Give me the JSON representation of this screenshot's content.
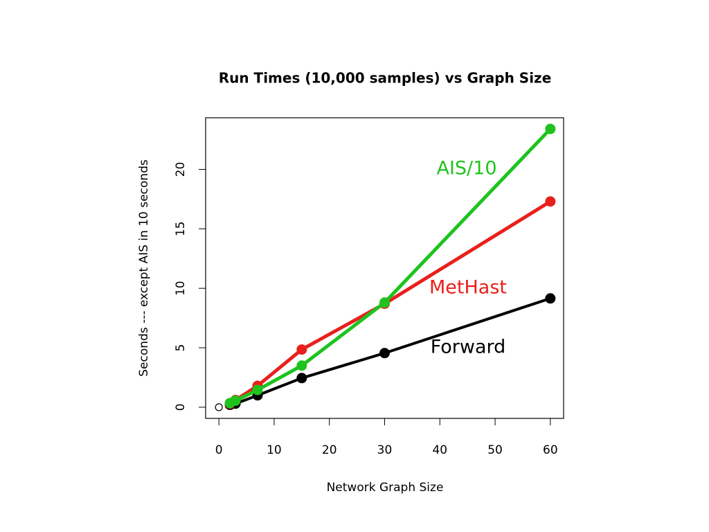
{
  "chart_data": {
    "type": "line",
    "title": "Run Times (10,000 samples) vs Graph Size",
    "x_label": "Network Graph Size",
    "y_label": "Seconds --- except AIS in 10 seconds",
    "x": [
      2,
      3,
      7,
      15,
      30,
      60
    ],
    "series": [
      {
        "name": "Forward",
        "color": "#000000",
        "values": [
          0.2,
          0.3,
          1.0,
          2.45,
          4.55,
          9.15
        ]
      },
      {
        "name": "MetHast",
        "color": "#e8201c",
        "values": [
          0.3,
          0.6,
          1.8,
          4.85,
          8.7,
          17.3
        ]
      },
      {
        "name": "AIS/10",
        "color": "#1ec31e",
        "values": [
          0.35,
          0.55,
          1.45,
          3.5,
          8.8,
          23.4
        ]
      }
    ],
    "extra_points": {
      "x": [
        0
      ],
      "y": [
        0
      ]
    },
    "xlim": [
      -2.4,
      62.4
    ],
    "ylim": [
      -0.94,
      24.34
    ],
    "xticks": [
      0,
      10,
      20,
      30,
      40,
      50,
      60
    ],
    "yticks": [
      0,
      5,
      10,
      15,
      20
    ],
    "grid": false
  }
}
